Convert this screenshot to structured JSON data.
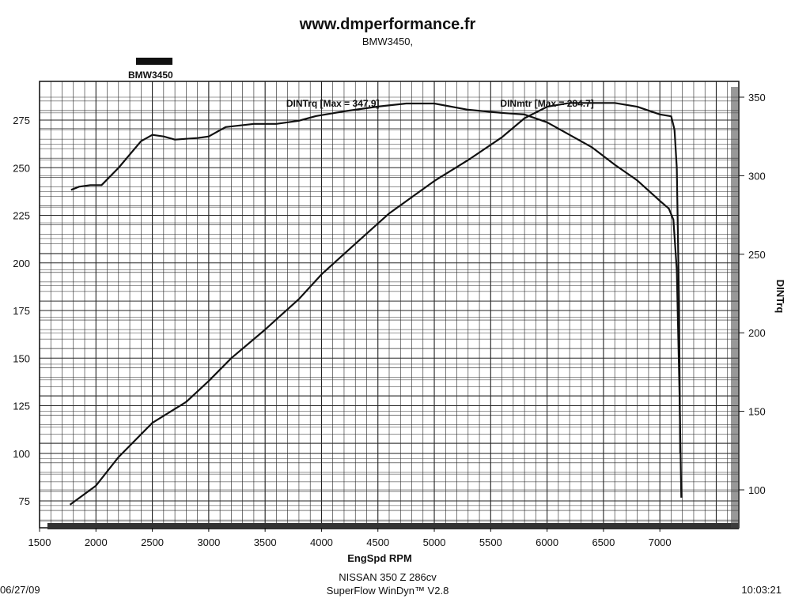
{
  "header": {
    "title": "www.dmperformance.fr",
    "subtitle": "BMW3450,"
  },
  "legend": {
    "label": "BMW3450",
    "swatch_color": "#111111"
  },
  "footer": {
    "line1": "NISSAN 350 Z 286cv",
    "line2": "SuperFlow WinDyn™ V2.8",
    "date": "06/27/09",
    "time": "10:03:21"
  },
  "chart_data": {
    "type": "line",
    "xlabel": "EngSpd  RPM",
    "ylabel_left": "",
    "ylabel_right": "DINTrq",
    "xlim": [
      1500,
      7700
    ],
    "ylim_left": [
      62,
      290
    ],
    "ylim_right": [
      72,
      355
    ],
    "x_ticks": [
      1500,
      2000,
      2500,
      3000,
      3500,
      4000,
      4500,
      5000,
      5500,
      6000,
      6500,
      7000
    ],
    "y_left_ticks": [
      75,
      100,
      125,
      150,
      175,
      200,
      225,
      250,
      275
    ],
    "y_right_ticks": [
      100,
      150,
      200,
      250,
      300,
      350
    ],
    "grid": true,
    "annotations": [
      {
        "text": "DINTrq [Max = 347.9]",
        "x": 4100,
        "y_left": 282
      },
      {
        "text": "DINmtr [Max = 284.7]",
        "x": 6000,
        "y_left": 282
      }
    ],
    "series": [
      {
        "name": "DINTrq",
        "axis": "right",
        "x": [
          1780,
          1850,
          1950,
          2050,
          2200,
          2400,
          2500,
          2600,
          2700,
          2900,
          3000,
          3150,
          3400,
          3600,
          3800,
          3950,
          4200,
          4500,
          4750,
          5000,
          5300,
          5600,
          5800,
          6000,
          6200,
          6400,
          6600,
          6800,
          7000,
          7080,
          7120,
          7150,
          7175,
          7190
        ],
        "y": [
          291,
          293,
          294,
          294,
          305,
          322,
          326,
          325,
          323,
          324,
          325,
          331,
          333,
          333,
          335,
          338,
          341,
          344,
          346,
          346,
          342,
          340,
          339,
          334,
          326,
          318,
          307,
          297,
          284,
          279,
          272,
          240,
          160,
          95
        ]
      },
      {
        "name": "DINmtr",
        "axis": "left",
        "x": [
          1770,
          2000,
          2200,
          2500,
          2800,
          3000,
          3200,
          3500,
          3800,
          4000,
          4300,
          4600,
          5000,
          5300,
          5600,
          5800,
          6000,
          6200,
          6400,
          6600,
          6800,
          7000,
          7100,
          7130,
          7150,
          7170,
          7180
        ],
        "y": [
          73,
          83,
          98,
          116,
          127,
          138,
          150,
          165,
          181,
          194,
          210,
          226,
          243,
          254,
          266,
          276,
          282,
          284,
          284,
          284,
          282,
          278,
          277,
          270,
          250,
          180,
          100
        ]
      }
    ]
  }
}
